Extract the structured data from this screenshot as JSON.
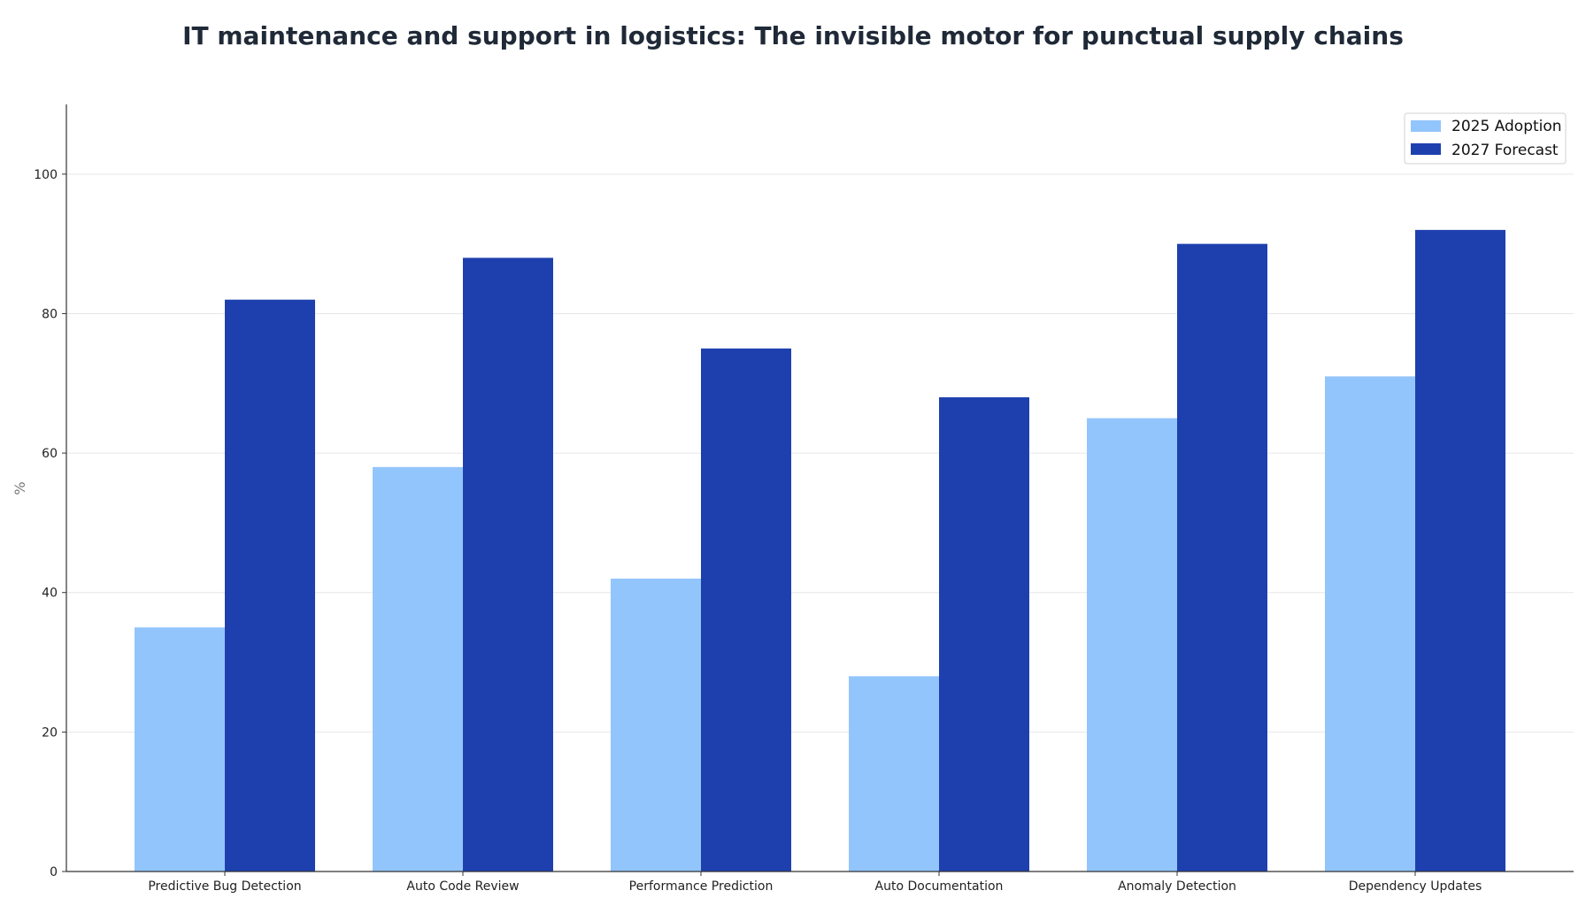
{
  "chart_data": {
    "type": "bar",
    "title": "IT maintenance and support in logistics: The invisible motor for punctual supply chains",
    "xlabel": "",
    "ylabel": "%",
    "ylim": [
      0,
      110
    ],
    "yticks": [
      0,
      20,
      40,
      60,
      80,
      100
    ],
    "grid": "horizontal",
    "legend_position": "top-right",
    "categories": [
      "Predictive Bug Detection",
      "Auto Code Review",
      "Performance Prediction",
      "Auto Documentation",
      "Anomaly Detection",
      "Dependency Updates"
    ],
    "series": [
      {
        "name": "2025 Adoption",
        "color": "#93c5fd",
        "values": [
          35,
          58,
          42,
          28,
          65,
          71
        ]
      },
      {
        "name": "2027 Forecast",
        "color": "#1e40af",
        "values": [
          82,
          88,
          75,
          68,
          90,
          92
        ]
      }
    ]
  }
}
